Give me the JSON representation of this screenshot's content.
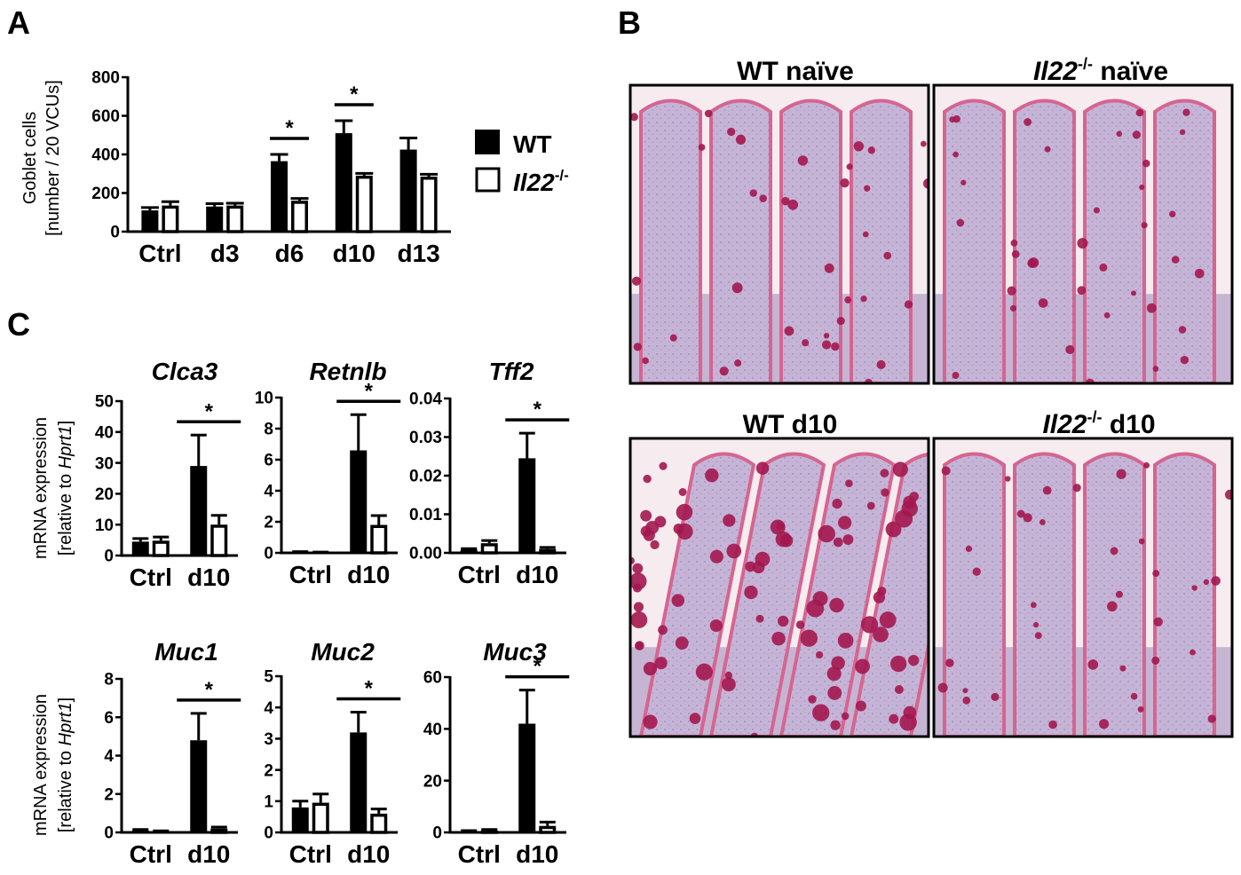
{
  "panels": {
    "A": {
      "letter": "A"
    },
    "B": {
      "letter": "B"
    },
    "C": {
      "letter": "C"
    }
  },
  "legend": {
    "wt": "WT",
    "ko_base": "Il22",
    "ko_sup": "-/-"
  },
  "histology": [
    {
      "label_base": "WT",
      "label_sup": "",
      "label_tail": " naïve",
      "italic_base": false
    },
    {
      "label_base": "Il22",
      "label_sup": "-/-",
      "label_tail": " naïve",
      "italic_base": true
    },
    {
      "label_base": "WT",
      "label_sup": "",
      "label_tail": " d10",
      "italic_base": false
    },
    {
      "label_base": "Il22",
      "label_sup": "-/-",
      "label_tail": " d10",
      "italic_base": true
    }
  ],
  "c_ylabel": {
    "line1": "mRNA expression",
    "line2_pre": "[relative to ",
    "line2_it": "Hprt1",
    "line2_post": "]"
  },
  "chart_data": [
    {
      "id": "A",
      "type": "bar",
      "title": "",
      "ylabel_line1": "Goblet cells",
      "ylabel_line2": "[number / 20 VCUs]",
      "categories": [
        "Ctrl",
        "d3",
        "d6",
        "d10",
        "d13"
      ],
      "ylim": [
        0,
        800
      ],
      "yticks": [
        "0",
        "200",
        "400",
        "600",
        "800"
      ],
      "series": [
        {
          "name": "WT",
          "values": [
            110,
            130,
            365,
            510,
            425
          ],
          "errors": [
            15,
            15,
            35,
            65,
            60
          ]
        },
        {
          "name": "Il22-/-",
          "values": [
            135,
            135,
            160,
            290,
            285
          ],
          "errors": [
            20,
            12,
            12,
            12,
            12
          ]
        }
      ],
      "significance": [
        {
          "category": "d6",
          "label": "*"
        },
        {
          "category": "d10",
          "label": "*"
        }
      ]
    },
    {
      "id": "Clca3",
      "type": "bar",
      "title": "Clca3",
      "categories": [
        "Ctrl",
        "d10"
      ],
      "ylim": [
        0,
        50
      ],
      "yticks": [
        "0",
        "10",
        "20",
        "30",
        "40",
        "50"
      ],
      "series": [
        {
          "name": "WT",
          "values": [
            4.5,
            29
          ],
          "errors": [
            1,
            10
          ]
        },
        {
          "name": "Il22-/-",
          "values": [
            4.8,
            10
          ],
          "errors": [
            1.2,
            3
          ]
        }
      ],
      "significance": [
        {
          "category": "d10",
          "label": "*"
        }
      ]
    },
    {
      "id": "Retnlb",
      "type": "bar",
      "title": "Retnlb",
      "categories": [
        "Ctrl",
        "d10"
      ],
      "ylim": [
        0,
        10
      ],
      "yticks": [
        "0",
        "2",
        "4",
        "6",
        "8",
        "10"
      ],
      "series": [
        {
          "name": "WT",
          "values": [
            0.05,
            6.6
          ],
          "errors": [
            0.03,
            2.3
          ]
        },
        {
          "name": "Il22-/-",
          "values": [
            0.03,
            1.8
          ],
          "errors": [
            0.02,
            0.6
          ]
        }
      ],
      "significance": [
        {
          "category": "d10",
          "label": "*"
        }
      ]
    },
    {
      "id": "Tff2",
      "type": "bar",
      "title": "Tff2",
      "categories": [
        "Ctrl",
        "d10"
      ],
      "ylim": [
        0,
        0.04
      ],
      "yticks": [
        "0.00",
        "0.01",
        "0.02",
        "0.03",
        "0.04"
      ],
      "series": [
        {
          "name": "WT",
          "values": [
            0.0008,
            0.0245
          ],
          "errors": [
            0.0003,
            0.0065
          ]
        },
        {
          "name": "Il22-/-",
          "values": [
            0.0025,
            0.001
          ],
          "errors": [
            0.0007,
            0.0004
          ]
        }
      ],
      "significance": [
        {
          "category": "d10",
          "label": "*"
        }
      ]
    },
    {
      "id": "Muc1",
      "type": "bar",
      "title": "Muc1",
      "categories": [
        "Ctrl",
        "d10"
      ],
      "ylim": [
        0,
        8
      ],
      "yticks": [
        "0",
        "2",
        "4",
        "6",
        "8"
      ],
      "series": [
        {
          "name": "WT",
          "values": [
            0.1,
            4.8
          ],
          "errors": [
            0.05,
            1.4
          ]
        },
        {
          "name": "Il22-/-",
          "values": [
            0.05,
            0.2
          ],
          "errors": [
            0.03,
            0.08
          ]
        }
      ],
      "significance": [
        {
          "category": "d10",
          "label": "*"
        }
      ]
    },
    {
      "id": "Muc2",
      "type": "bar",
      "title": "Muc2",
      "categories": [
        "Ctrl",
        "d10"
      ],
      "ylim": [
        0,
        5
      ],
      "yticks": [
        "0",
        "1",
        "2",
        "3",
        "4",
        "5"
      ],
      "series": [
        {
          "name": "WT",
          "values": [
            0.8,
            3.2
          ],
          "errors": [
            0.2,
            0.65
          ]
        },
        {
          "name": "Il22-/-",
          "values": [
            0.95,
            0.6
          ],
          "errors": [
            0.28,
            0.15
          ]
        }
      ],
      "significance": [
        {
          "category": "d10",
          "label": "*"
        }
      ]
    },
    {
      "id": "Muc3",
      "type": "bar",
      "title": "Muc3",
      "categories": [
        "Ctrl",
        "d10"
      ],
      "ylim": [
        0,
        60
      ],
      "yticks": [
        "0",
        "20",
        "40",
        "60"
      ],
      "series": [
        {
          "name": "WT",
          "values": [
            0.5,
            42
          ],
          "errors": [
            0.2,
            13
          ]
        },
        {
          "name": "Il22-/-",
          "values": [
            0.8,
            2.5
          ],
          "errors": [
            0.3,
            1.5
          ]
        }
      ],
      "significance": [
        {
          "category": "d10",
          "label": "*"
        }
      ]
    }
  ]
}
